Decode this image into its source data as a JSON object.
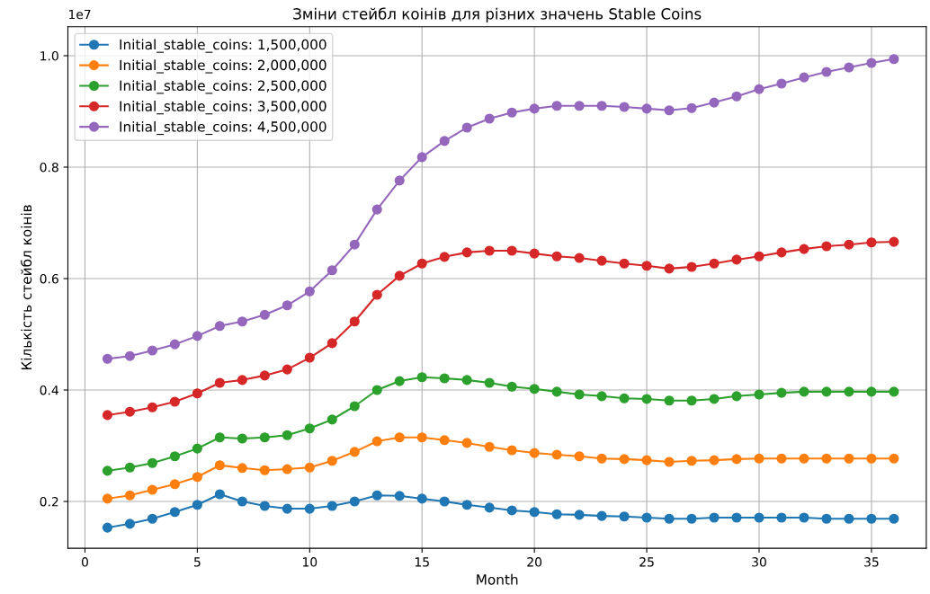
{
  "chart_data": {
    "type": "line",
    "title": "Зміни стейбл коінів для різних значень Stable Coins",
    "xlabel": "Month",
    "ylabel": "Кількість стейбл коінів",
    "annotations": [
      "1e7"
    ],
    "x": [
      1,
      2,
      3,
      4,
      5,
      6,
      7,
      8,
      9,
      10,
      11,
      12,
      13,
      14,
      15,
      16,
      17,
      18,
      19,
      20,
      21,
      22,
      23,
      24,
      25,
      26,
      27,
      28,
      29,
      30,
      31,
      32,
      33,
      34,
      35,
      36
    ],
    "series": [
      {
        "name": "Initial_stable_coins: 1,500,000",
        "color": "#1f77b4",
        "values": [
          0.153,
          0.16,
          0.169,
          0.181,
          0.194,
          0.213,
          0.2,
          0.192,
          0.187,
          0.187,
          0.192,
          0.2,
          0.211,
          0.21,
          0.205,
          0.2,
          0.194,
          0.189,
          0.184,
          0.181,
          0.177,
          0.176,
          0.174,
          0.173,
          0.171,
          0.169,
          0.169,
          0.171,
          0.171,
          0.171,
          0.171,
          0.171,
          0.169,
          0.169,
          0.169,
          0.169
        ]
      },
      {
        "name": "Initial_stable_coins: 2,000,000",
        "color": "#ff7f0e",
        "values": [
          0.205,
          0.211,
          0.221,
          0.231,
          0.244,
          0.265,
          0.26,
          0.256,
          0.258,
          0.261,
          0.273,
          0.289,
          0.308,
          0.315,
          0.315,
          0.31,
          0.305,
          0.298,
          0.292,
          0.287,
          0.284,
          0.281,
          0.277,
          0.276,
          0.274,
          0.271,
          0.273,
          0.274,
          0.276,
          0.277,
          0.277,
          0.277,
          0.277,
          0.277,
          0.277,
          0.277
        ]
      },
      {
        "name": "Initial_stable_coins: 2,500,000",
        "color": "#2ca02c",
        "values": [
          0.255,
          0.261,
          0.269,
          0.281,
          0.295,
          0.315,
          0.313,
          0.315,
          0.319,
          0.331,
          0.347,
          0.371,
          0.4,
          0.416,
          0.423,
          0.421,
          0.418,
          0.413,
          0.406,
          0.402,
          0.397,
          0.392,
          0.389,
          0.385,
          0.384,
          0.381,
          0.381,
          0.384,
          0.389,
          0.392,
          0.395,
          0.397,
          0.397,
          0.397,
          0.397,
          0.397
        ]
      },
      {
        "name": "Initial_stable_coins: 3,500,000",
        "color": "#d62728",
        "values": [
          0.355,
          0.361,
          0.369,
          0.379,
          0.394,
          0.413,
          0.418,
          0.426,
          0.437,
          0.458,
          0.484,
          0.523,
          0.571,
          0.605,
          0.627,
          0.639,
          0.647,
          0.65,
          0.65,
          0.645,
          0.64,
          0.637,
          0.632,
          0.627,
          0.623,
          0.618,
          0.621,
          0.627,
          0.634,
          0.64,
          0.647,
          0.653,
          0.658,
          0.661,
          0.665,
          0.666
        ]
      },
      {
        "name": "Initial_stable_coins: 4,500,000",
        "color": "#9467bd",
        "values": [
          0.456,
          0.461,
          0.471,
          0.482,
          0.497,
          0.515,
          0.523,
          0.535,
          0.552,
          0.577,
          0.615,
          0.661,
          0.724,
          0.776,
          0.818,
          0.847,
          0.871,
          0.887,
          0.898,
          0.905,
          0.91,
          0.91,
          0.91,
          0.908,
          0.905,
          0.902,
          0.906,
          0.916,
          0.927,
          0.94,
          0.95,
          0.961,
          0.971,
          0.979,
          0.987,
          0.994
        ]
      }
    ],
    "xlim": [
      -0.76,
      37.44
    ],
    "xticks": [
      0,
      5,
      10,
      15,
      20,
      25,
      30,
      35
    ],
    "ylim": [
      0.116,
      1.052
    ],
    "yticks": [
      {
        "value": 0.2,
        "label": "0.2"
      },
      {
        "value": 0.4,
        "label": "0.4"
      },
      {
        "value": 0.6,
        "label": "0.6"
      },
      {
        "value": 0.8,
        "label": "0.8"
      },
      {
        "value": 1.0,
        "label": "1.0"
      }
    ],
    "grid": true,
    "legend": "top left",
    "marker": "circle",
    "line_style": "solid"
  }
}
